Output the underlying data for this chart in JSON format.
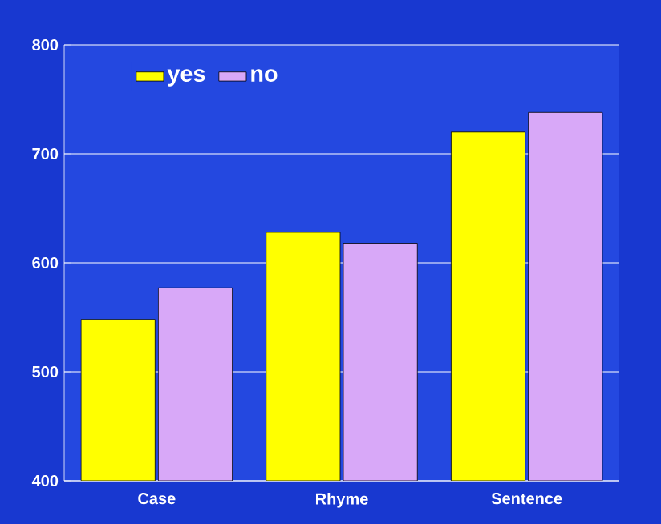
{
  "chart_data": {
    "type": "bar",
    "categories": [
      "Case",
      "Rhyme",
      "Sentence"
    ],
    "series": [
      {
        "name": "yes",
        "color": "#ffff00",
        "values": [
          548,
          628,
          720
        ]
      },
      {
        "name": "no",
        "color": "#d8a8f8",
        "values": [
          577,
          618,
          738
        ]
      }
    ],
    "ylim": [
      400,
      800
    ],
    "yticks": [
      400,
      500,
      600,
      700,
      800
    ],
    "grid": "y",
    "legend": "top left"
  }
}
